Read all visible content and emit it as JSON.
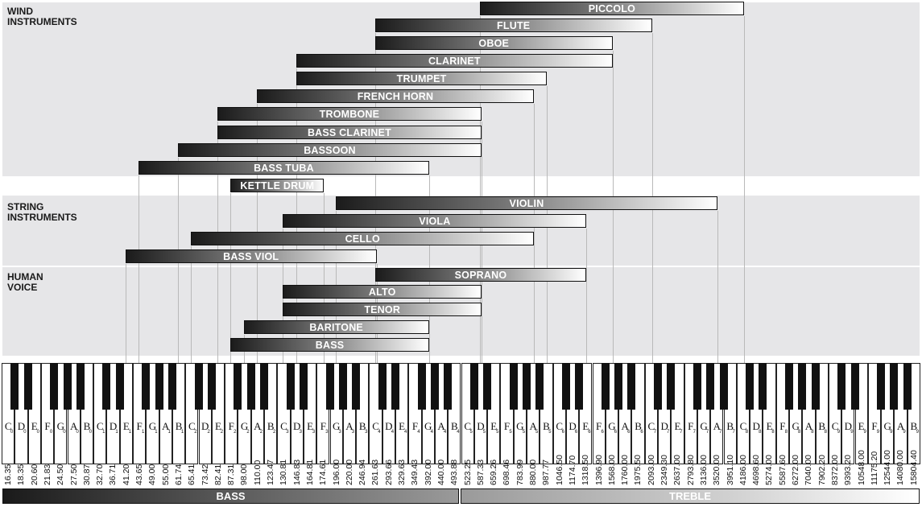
{
  "sections": [
    {
      "id": "wind",
      "label": "WIND\nINSTRUMENTS"
    },
    {
      "id": "string",
      "label": "STRING\nINSTRUMENTS"
    },
    {
      "id": "voice",
      "label": "HUMAN\nVOICE"
    }
  ],
  "instruments": [
    {
      "label": "PICCOLO",
      "low": "D5",
      "high": "C8"
    },
    {
      "label": "FLUTE",
      "low": "C4",
      "high": "C7"
    },
    {
      "label": "OBOE",
      "low": "C4",
      "high": "G6"
    },
    {
      "label": "CLARINET",
      "low": "D3",
      "high": "G6"
    },
    {
      "label": "TRUMPET",
      "low": "D3",
      "high": "B5"
    },
    {
      "label": "FRENCH HORN",
      "low": "A2",
      "high": "A5"
    },
    {
      "label": "TROMBONE",
      "low": "E2",
      "high": "D5"
    },
    {
      "label": "BASS CLARINET",
      "low": "E2",
      "high": "D5"
    },
    {
      "label": "BASSOON",
      "low": "B1",
      "high": "D5"
    },
    {
      "label": "BASS TUBA",
      "low": "F1",
      "high": "G4"
    },
    {
      "label": "KETTLE DRUM",
      "low": "F2",
      "high": "F3"
    },
    {
      "label": "VIOLIN",
      "low": "G3",
      "high": "A7"
    },
    {
      "label": "VIOLA",
      "low": "C3",
      "high": "E6"
    },
    {
      "label": "CELLO",
      "low": "C2",
      "high": "A5"
    },
    {
      "label": "BASS VIOL",
      "low": "E1",
      "high": "C4"
    },
    {
      "label": "SOPRANO",
      "low": "C4",
      "high": "E6"
    },
    {
      "label": "ALTO",
      "low": "C3",
      "high": "D5"
    },
    {
      "label": "TENOR",
      "low": "C3",
      "high": "D5"
    },
    {
      "label": "BARITONE",
      "low": "G2",
      "high": "G4"
    },
    {
      "label": "BASS",
      "low": "F2",
      "high": "G4"
    }
  ],
  "keyboard": {
    "notes": [
      "C",
      "D",
      "E",
      "F",
      "G",
      "A",
      "B"
    ],
    "first_octave": 0,
    "last_octave": 9,
    "frequencies": [
      "16.35",
      "18.35",
      "20.60",
      "21.83",
      "24.50",
      "27.50",
      "30.87",
      "32.70",
      "36.71",
      "41.20",
      "43.65",
      "49.00",
      "55.00",
      "61.74",
      "65.41",
      "73.42",
      "82.41",
      "87.31",
      "98.00",
      "110.00",
      "123.47",
      "130.81",
      "146.83",
      "164.81",
      "174.61",
      "196.00",
      "220.00",
      "246.94",
      "261.63",
      "293.66",
      "329.63",
      "349.43",
      "392.00",
      "440.00",
      "493.88",
      "523.25",
      "587.33",
      "659.26",
      "698.46",
      "783.99",
      "880.00",
      "987.77",
      "1046.50",
      "1174.70",
      "1318.50",
      "1396.90",
      "1568.00",
      "1760.00",
      "1975.50",
      "2093.00",
      "2349.30",
      "2637.00",
      "2793.80",
      "3136.00",
      "3520.00",
      "3951.10",
      "4186.00",
      "4698.60",
      "5274.00",
      "5587.60",
      "6272.00",
      "7040.00",
      "7902.20",
      "8372.00",
      "9393.20",
      "10548.00",
      "11175.20",
      "12544.00",
      "14080.00",
      "15804.40"
    ]
  },
  "footer": {
    "bass": "BASS",
    "treble": "TREBLE"
  }
}
